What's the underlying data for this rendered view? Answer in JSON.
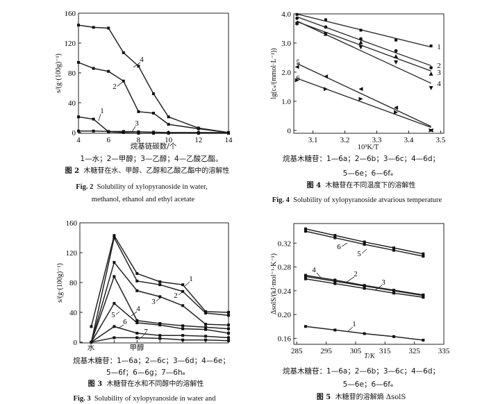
{
  "chart_data": [
    {
      "id": "fig2",
      "type": "line",
      "x": [
        4,
        5,
        6,
        7,
        8,
        9,
        10,
        12,
        14
      ],
      "xlim": [
        4,
        14
      ],
      "ylim": [
        -1,
        160
      ],
      "xticks": [
        "4",
        "6",
        "8",
        "10",
        "12",
        "14"
      ],
      "xtick_values": [
        4,
        6,
        8,
        10,
        12,
        14
      ],
      "yticks": [
        "0",
        "40",
        "80",
        "120",
        "160"
      ],
      "ytick_values": [
        0,
        40,
        80,
        120,
        160
      ],
      "xlabel": "烷基链碳数/个",
      "ylabel": "s/(g·(100g)⁻¹)",
      "series": [
        {
          "name": "1",
          "values": [
            21,
            18,
            1,
            0,
            -1,
            -1,
            -1,
            -1,
            -1
          ]
        },
        {
          "name": "2",
          "values": [
            94,
            86,
            82,
            69,
            28,
            26,
            11,
            5,
            0
          ]
        },
        {
          "name": "3",
          "values": [
            2,
            2,
            1.5,
            1.5,
            1,
            0.5,
            0,
            0,
            0
          ]
        },
        {
          "name": "4",
          "values": [
            144,
            141,
            140,
            107,
            89,
            52,
            21,
            6,
            0
          ]
        }
      ],
      "legend": "1—水；2—甲醇；3—乙醇；4—乙酸乙酯。",
      "caption_cn": "木糖苷在水、甲醇、乙醇和乙酸乙酯中的溶解性",
      "caption_num_cn": "图 2",
      "caption_num_en": "Fig. 2",
      "caption_en": [
        "Solubility of xylopyranoside in water,",
        "methanol, ethanol and ethyl acetate"
      ]
    },
    {
      "id": "fig4",
      "type": "scatter",
      "x": [
        3.05,
        3.14,
        3.25,
        3.36,
        3.47
      ],
      "xlim": [
        3.04,
        3.51
      ],
      "ylim": [
        -0.1,
        4.0
      ],
      "xticks": [
        "3.1",
        "3.2",
        "3.3",
        "3.4",
        "3.5"
      ],
      "xtick_values": [
        3.1,
        3.2,
        3.3,
        3.4,
        3.5
      ],
      "yticks": [
        "0",
        "1.0",
        "2.0",
        "3.0",
        "4.0"
      ],
      "ytick_values": [
        0,
        1,
        2,
        3,
        4
      ],
      "xlabel": "10³K/T",
      "ylabel": "lg(cₛ/(mmol·L⁻¹))",
      "fit_lines": true,
      "series": [
        {
          "name": "1",
          "values": [
            3.98,
            3.8,
            3.44,
            3.1,
            2.9
          ],
          "marker": "square"
        },
        {
          "name": "2",
          "values": [
            3.85,
            3.55,
            3.14,
            2.73,
            2.15
          ],
          "marker": "circle"
        },
        {
          "name": "3",
          "values": [
            3.7,
            3.32,
            3.03,
            2.55,
            1.95
          ],
          "marker": "triangle-up"
        },
        {
          "name": "4",
          "values": [
            3.65,
            3.3,
            2.85,
            2.33,
            1.45
          ],
          "marker": "triangle-down"
        },
        {
          "name": "5",
          "values": [
            2.18,
            1.85,
            1.42,
            0.78,
            0.0
          ],
          "marker": "triangle-left"
        },
        {
          "name": "6",
          "values": [
            1.72,
            1.42,
            1.08,
            0.62,
            0.0
          ],
          "marker": "triangle-right"
        }
      ],
      "legend": [
        "烷基木糖苷：1—6a；2—6b；3—6c；4—6d；",
        "5—6e；6—6fₑ"
      ],
      "caption_num_cn": "图 4",
      "caption_cn": "木糖苷在不同温度下的溶解性",
      "caption_num_en": "Fig. 4",
      "caption_en": [
        "Solubility of xylopyranoside atvarious temperature"
      ]
    },
    {
      "id": "fig3",
      "type": "line",
      "x": [
        1,
        2,
        3,
        4,
        5,
        6,
        7
      ],
      "categories": [
        "水",
        "",
        "甲醇",
        "",
        "",
        "",
        ""
      ],
      "xlim": [
        0.5,
        7
      ],
      "ylim": [
        -1,
        160
      ],
      "yticks": [
        "0",
        "40",
        "80",
        "120",
        "160"
      ],
      "ytick_values": [
        0,
        40,
        80,
        120,
        160
      ],
      "ylabel": "s/(g·(100g)⁻¹)",
      "series": [
        {
          "name": "1",
          "values": [
            21,
            143,
            92,
            81,
            77,
            41,
            40
          ]
        },
        {
          "name": "2",
          "values": [
            0,
            140,
            82,
            77,
            68,
            39,
            36
          ]
        },
        {
          "name": "3",
          "values": [
            0,
            107,
            69,
            61,
            49,
            24,
            23
          ]
        },
        {
          "name": "4",
          "values": [
            0,
            88,
            29,
            25,
            22,
            20,
            18
          ]
        },
        {
          "name": "5",
          "values": [
            0,
            52,
            26,
            23,
            18,
            17,
            12
          ]
        },
        {
          "name": "6",
          "values": [
            0,
            21,
            12,
            9,
            9,
            8,
            6
          ]
        },
        {
          "name": "7",
          "values": [
            0,
            6,
            6,
            5,
            3,
            3,
            2
          ]
        }
      ],
      "legend": [
        "烷基木糖苷：1—6a；2—6c；3—6d；4—6e；",
        "5—6f；6—6g；7—6hₑ"
      ],
      "caption_num_cn": "图 3",
      "caption_cn": "木糖苷在水和不同醇中的溶解性",
      "caption_num_en": "Fig. 3",
      "caption_en": [
        "Solubility of xylopyranoside in water and"
      ]
    },
    {
      "id": "fig5",
      "type": "line",
      "x": [
        288,
        298,
        308,
        318,
        328
      ],
      "xlim": [
        284,
        335
      ],
      "ylim": [
        0.15,
        0.353
      ],
      "xticks": [
        "285",
        "295",
        "305",
        "315",
        "325",
        "335"
      ],
      "xtick_values": [
        285,
        295,
        305,
        315,
        325,
        335
      ],
      "yticks": [
        "0.16",
        "0.20",
        "0.24",
        "0.28",
        "0.32"
      ],
      "ytick_values": [
        0.16,
        0.2,
        0.24,
        0.28,
        0.32
      ],
      "xlabel": "T/K",
      "ylabel": "ΔsolS/(kJ·mol⁻¹·K⁻¹)",
      "series": [
        {
          "name": "1",
          "values": [
            0.18,
            0.174,
            0.168,
            0.163,
            0.157
          ]
        },
        {
          "name": "2",
          "values": [
            0.264,
            0.256,
            0.248,
            0.24,
            0.232
          ]
        },
        {
          "name": "3",
          "values": [
            0.26,
            0.252,
            0.244,
            0.236,
            0.229
          ]
        },
        {
          "name": "4",
          "values": [
            0.266,
            0.258,
            0.249,
            0.241,
            0.233
          ]
        },
        {
          "name": "5",
          "values": [
            0.34,
            0.329,
            0.318,
            0.308,
            0.298
          ]
        },
        {
          "name": "6",
          "values": [
            0.344,
            0.333,
            0.322,
            0.312,
            0.302
          ]
        }
      ],
      "legend": [
        "烷基木糖苷：1—6a；2—6b；3—6c；4—6d；",
        "5—6e；6—6fₑ"
      ],
      "caption_num_cn": "图 5",
      "caption_cn": "木糖苷的溶解熵 ΔsolS"
    }
  ]
}
